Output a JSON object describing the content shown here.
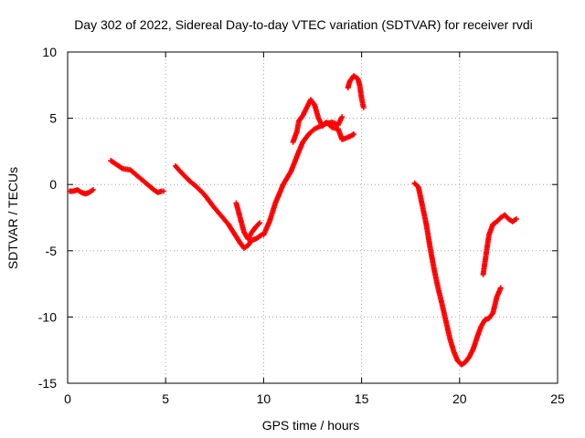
{
  "chart_data": {
    "type": "scatter",
    "title": "Day 302 of 2022, Sidereal Day-to-day VTEC variation (SDTVAR) for receiver rvdi",
    "xlabel": "GPS time / hours",
    "ylabel": "SDTVAR / TECUs",
    "xlim": [
      0,
      25
    ],
    "ylim": [
      -15,
      10
    ],
    "xticks": [
      "0",
      "5",
      "10",
      "15",
      "20",
      "25"
    ],
    "yticks": [
      "-15",
      "-10",
      "-5",
      "0",
      "5",
      "10"
    ],
    "grid": true,
    "marker": "+",
    "color": "#ff0000",
    "series": [
      {
        "segments": [
          [
            [
              0.1,
              -0.5
            ],
            [
              0.3,
              -0.5
            ],
            [
              0.5,
              -0.4
            ],
            [
              0.7,
              -0.6
            ],
            [
              0.9,
              -0.7
            ],
            [
              1.1,
              -0.6
            ],
            [
              1.3,
              -0.4
            ]
          ],
          [
            [
              2.2,
              1.8
            ],
            [
              2.5,
              1.5
            ],
            [
              2.8,
              1.2
            ],
            [
              3.2,
              1.1
            ],
            [
              3.6,
              0.6
            ],
            [
              4.0,
              0.1
            ],
            [
              4.4,
              -0.4
            ],
            [
              4.6,
              -0.6
            ],
            [
              4.8,
              -0.5
            ],
            [
              4.9,
              -0.5
            ]
          ],
          [
            [
              5.5,
              1.4
            ],
            [
              5.8,
              0.9
            ],
            [
              6.2,
              0.3
            ],
            [
              6.6,
              -0.2
            ],
            [
              7.0,
              -0.8
            ],
            [
              7.4,
              -1.6
            ],
            [
              7.8,
              -2.3
            ],
            [
              8.2,
              -3.0
            ],
            [
              8.5,
              -3.7
            ],
            [
              8.8,
              -4.4
            ],
            [
              9.0,
              -4.8
            ],
            [
              9.2,
              -4.6
            ],
            [
              9.4,
              -4.2
            ],
            [
              9.6,
              -4.1
            ],
            [
              9.9,
              -3.8
            ]
          ],
          [
            [
              8.6,
              -1.4
            ],
            [
              8.8,
              -2.5
            ],
            [
              9.0,
              -3.6
            ],
            [
              9.2,
              -4.1
            ],
            [
              9.4,
              -3.6
            ],
            [
              9.6,
              -3.2
            ],
            [
              9.8,
              -2.9
            ]
          ],
          [
            [
              10.0,
              -3.8
            ],
            [
              10.3,
              -2.8
            ],
            [
              10.6,
              -1.4
            ],
            [
              11.0,
              0.0
            ],
            [
              11.4,
              1.0
            ],
            [
              11.8,
              2.5
            ],
            [
              12.0,
              3.2
            ],
            [
              12.3,
              3.8
            ],
            [
              12.6,
              4.2
            ],
            [
              12.9,
              4.4
            ],
            [
              13.2,
              4.6
            ],
            [
              13.5,
              4.7
            ],
            [
              13.8,
              4.5
            ],
            [
              14.0,
              5.1
            ]
          ],
          [
            [
              11.5,
              3.2
            ],
            [
              11.7,
              4.0
            ],
            [
              11.8,
              4.8
            ],
            [
              12.0,
              5.2
            ],
            [
              12.2,
              5.8
            ],
            [
              12.4,
              6.4
            ],
            [
              12.6,
              6.0
            ],
            [
              12.8,
              5.0
            ],
            [
              13.0,
              4.4
            ],
            [
              13.2,
              4.7
            ],
            [
              13.5,
              4.3
            ],
            [
              13.8,
              4.2
            ],
            [
              14.0,
              3.4
            ],
            [
              14.2,
              3.5
            ],
            [
              14.5,
              3.7
            ],
            [
              14.6,
              3.8
            ]
          ],
          [
            [
              14.3,
              7.3
            ],
            [
              14.4,
              7.8
            ],
            [
              14.6,
              8.2
            ],
            [
              14.8,
              8.0
            ],
            [
              14.9,
              7.5
            ],
            [
              15.0,
              6.5
            ],
            [
              15.1,
              5.8
            ]
          ],
          [
            [
              17.7,
              0.1
            ],
            [
              17.9,
              -0.2
            ],
            [
              18.1,
              -1.6
            ],
            [
              18.3,
              -3.0
            ],
            [
              18.5,
              -4.8
            ],
            [
              18.7,
              -6.4
            ],
            [
              18.9,
              -7.8
            ],
            [
              19.1,
              -9.0
            ],
            [
              19.3,
              -10.3
            ],
            [
              19.5,
              -11.6
            ],
            [
              19.7,
              -12.6
            ],
            [
              19.9,
              -13.3
            ],
            [
              20.1,
              -13.6
            ],
            [
              20.3,
              -13.4
            ],
            [
              20.5,
              -13.0
            ],
            [
              20.7,
              -12.4
            ],
            [
              20.9,
              -11.5
            ],
            [
              21.1,
              -10.7
            ],
            [
              21.3,
              -10.2
            ],
            [
              21.5,
              -10.1
            ],
            [
              21.7,
              -9.7
            ],
            [
              21.9,
              -8.5
            ],
            [
              22.1,
              -7.8
            ]
          ],
          [
            [
              21.2,
              -6.8
            ],
            [
              21.3,
              -5.8
            ],
            [
              21.4,
              -4.8
            ],
            [
              21.5,
              -3.8
            ],
            [
              21.7,
              -3.0
            ],
            [
              21.9,
              -2.8
            ],
            [
              22.1,
              -2.5
            ],
            [
              22.3,
              -2.3
            ],
            [
              22.5,
              -2.6
            ],
            [
              22.7,
              -2.8
            ],
            [
              22.9,
              -2.6
            ]
          ]
        ]
      }
    ]
  }
}
